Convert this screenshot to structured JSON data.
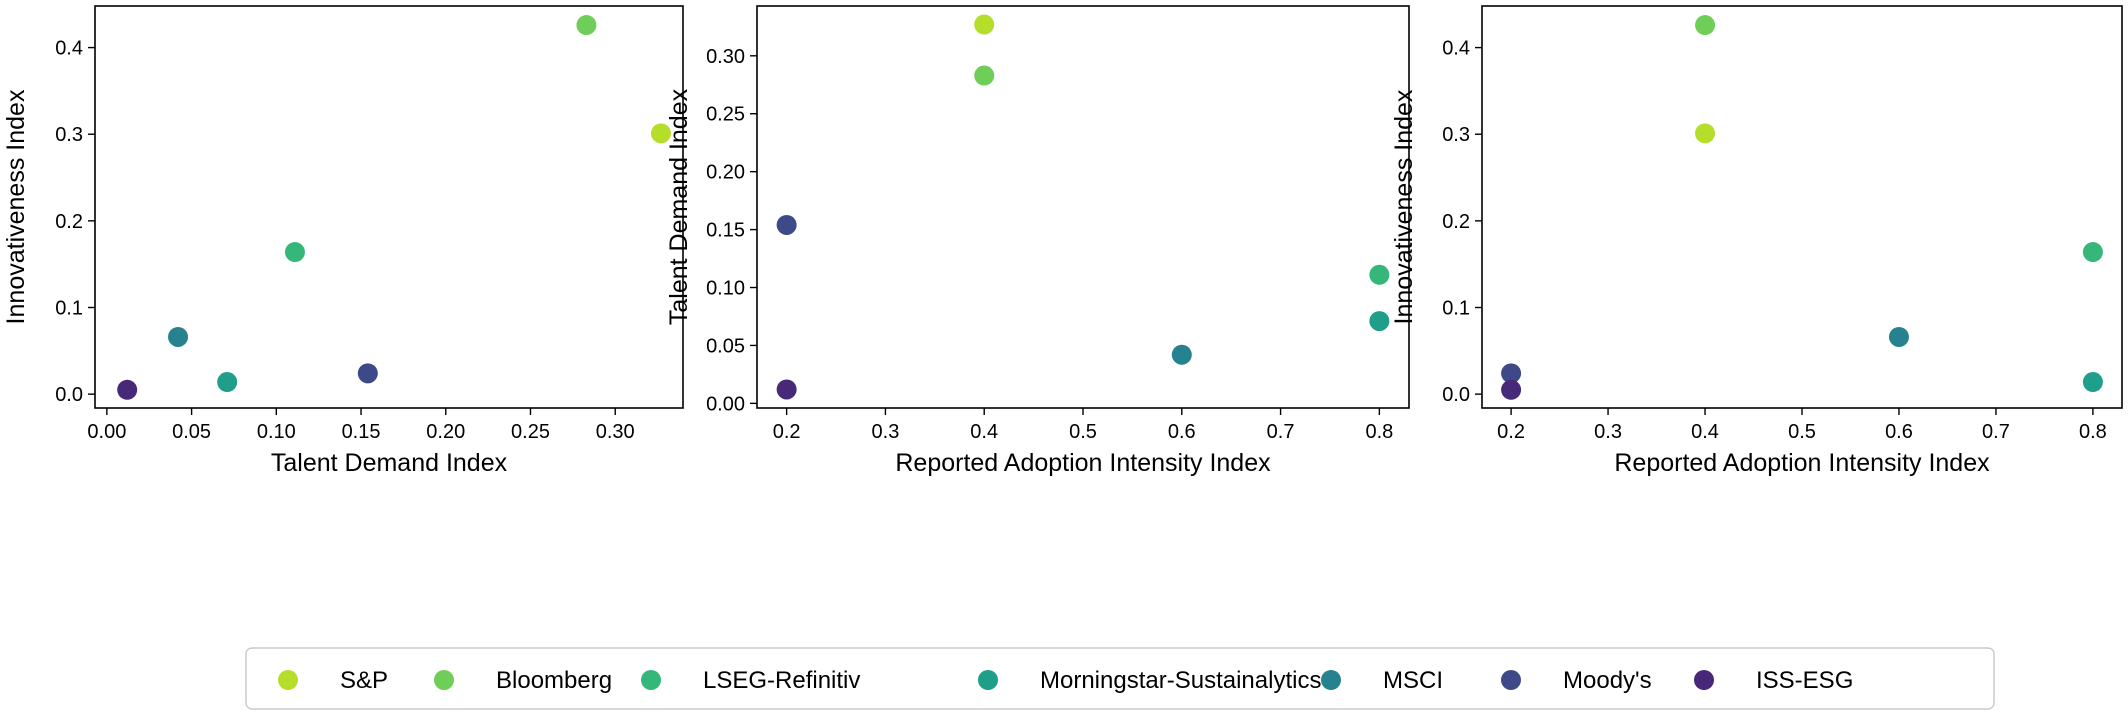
{
  "series_info": [
    {
      "name": "S&P",
      "color": "#b5de2b"
    },
    {
      "name": "Bloomberg",
      "color": "#6ece58"
    },
    {
      "name": "LSEG-Refinitiv",
      "color": "#35b779"
    },
    {
      "name": "Morningstar-Sustainalytics",
      "color": "#1f9e89"
    },
    {
      "name": "MSCI",
      "color": "#26828e"
    },
    {
      "name": "Moody's",
      "color": "#3e4989"
    },
    {
      "name": "ISS-ESG",
      "color": "#482878"
    }
  ],
  "chart_data": [
    {
      "type": "scatter",
      "xlabel": "Talent Demand Index",
      "ylabel": "Innovativeness Index",
      "xlim": [
        -0.007,
        0.34
      ],
      "ylim": [
        -0.016,
        0.448
      ],
      "xticks": [
        "0.00",
        "0.05",
        "0.10",
        "0.15",
        "0.20",
        "0.25",
        "0.30"
      ],
      "yticks": [
        "0.0",
        "0.1",
        "0.2",
        "0.3",
        "0.4"
      ],
      "xtick_values": [
        0.0,
        0.05,
        0.1,
        0.15,
        0.2,
        0.25,
        0.3
      ],
      "ytick_values": [
        0.0,
        0.1,
        0.2,
        0.3,
        0.4
      ],
      "points": [
        {
          "series": "S&P",
          "x": 0.327,
          "y": 0.301
        },
        {
          "series": "Bloomberg",
          "x": 0.283,
          "y": 0.426
        },
        {
          "series": "LSEG-Refinitiv",
          "x": 0.111,
          "y": 0.164
        },
        {
          "series": "Morningstar-Sustainalytics",
          "x": 0.071,
          "y": 0.014
        },
        {
          "series": "MSCI",
          "x": 0.042,
          "y": 0.066
        },
        {
          "series": "Moody's",
          "x": 0.154,
          "y": 0.024
        },
        {
          "series": "ISS-ESG",
          "x": 0.012,
          "y": 0.005
        }
      ]
    },
    {
      "type": "scatter",
      "xlabel": "Reported Adoption Intensity Index",
      "ylabel": "Talent Demand Index",
      "xlim": [
        0.17,
        0.83
      ],
      "ylim": [
        -0.004,
        0.343
      ],
      "xticks": [
        "0.2",
        "0.3",
        "0.4",
        "0.5",
        "0.6",
        "0.7",
        "0.8"
      ],
      "yticks": [
        "0.00",
        "0.05",
        "0.10",
        "0.15",
        "0.20",
        "0.25",
        "0.30"
      ],
      "xtick_values": [
        0.2,
        0.3,
        0.4,
        0.5,
        0.6,
        0.7,
        0.8
      ],
      "ytick_values": [
        0.0,
        0.05,
        0.1,
        0.15,
        0.2,
        0.25,
        0.3
      ],
      "points": [
        {
          "series": "S&P",
          "x": 0.4,
          "y": 0.327
        },
        {
          "series": "Bloomberg",
          "x": 0.4,
          "y": 0.283
        },
        {
          "series": "LSEG-Refinitiv",
          "x": 0.8,
          "y": 0.111
        },
        {
          "series": "Morningstar-Sustainalytics",
          "x": 0.8,
          "y": 0.071
        },
        {
          "series": "MSCI",
          "x": 0.6,
          "y": 0.042
        },
        {
          "series": "Moody's",
          "x": 0.2,
          "y": 0.154
        },
        {
          "series": "ISS-ESG",
          "x": 0.2,
          "y": 0.012
        }
      ]
    },
    {
      "type": "scatter",
      "xlabel": "Reported Adoption Intensity Index",
      "ylabel": "Innovativeness Index",
      "xlim": [
        0.17,
        0.83
      ],
      "ylim": [
        -0.016,
        0.448
      ],
      "xticks": [
        "0.2",
        "0.3",
        "0.4",
        "0.5",
        "0.6",
        "0.7",
        "0.8"
      ],
      "yticks": [
        "0.0",
        "0.1",
        "0.2",
        "0.3",
        "0.4"
      ],
      "xtick_values": [
        0.2,
        0.3,
        0.4,
        0.5,
        0.6,
        0.7,
        0.8
      ],
      "ytick_values": [
        0.0,
        0.1,
        0.2,
        0.3,
        0.4
      ],
      "points": [
        {
          "series": "S&P",
          "x": 0.4,
          "y": 0.301
        },
        {
          "series": "Bloomberg",
          "x": 0.4,
          "y": 0.426
        },
        {
          "series": "LSEG-Refinitiv",
          "x": 0.8,
          "y": 0.164
        },
        {
          "series": "Morningstar-Sustainalytics",
          "x": 0.8,
          "y": 0.014
        },
        {
          "series": "MSCI",
          "x": 0.6,
          "y": 0.066
        },
        {
          "series": "Moody's",
          "x": 0.2,
          "y": 0.024
        },
        {
          "series": "ISS-ESG",
          "x": 0.2,
          "y": 0.005
        }
      ]
    }
  ]
}
